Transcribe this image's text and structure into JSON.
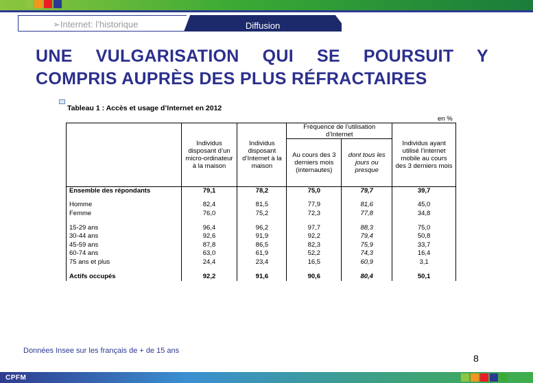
{
  "header": {
    "tab_previous": "➢Internet: l’historique",
    "tab_current": "Diffusion",
    "top_squares": [
      "#8dc63f",
      "#f7941d",
      "#ed1c24",
      "#2b3990"
    ],
    "bottom_squares": [
      "#8dc63f",
      "#f7941d",
      "#ed1c24",
      "#2b3990",
      "#39a935"
    ]
  },
  "title": {
    "line1": "UNE VULGARISATION QUI SE POURSUIT Y",
    "line2": "COMPRIS AUPRÈS DES PLUS RÉFRACTAIRES"
  },
  "table": {
    "caption": "Tableau 1 : Accès et usage d’Internet en 2012",
    "unit": "en %",
    "group_header": "Fréquence de l’utilisation d’Internet",
    "columns": [
      "Individus disposant d’un micro-ordinateur à la maison",
      "Individus disposant d’Internet à la maison",
      "Au cours des 3 derniers mois (internautes)",
      "dont tous les jours ou presque",
      "Individus ayant utilisé l’internet mobile au cours des 3 derniers mois"
    ],
    "rows": [
      {
        "label": "Ensemble des répondants",
        "values": [
          "79,1",
          "78,2",
          "75,0",
          "79,7",
          "39,7"
        ]
      },
      {
        "label": "Homme",
        "values": [
          "82,4",
          "81,5",
          "77,9",
          "81,6",
          "45,0"
        ]
      },
      {
        "label": "Femme",
        "values": [
          "76,0",
          "75,2",
          "72,3",
          "77,8",
          "34,8"
        ]
      },
      {
        "label": "15-29 ans",
        "values": [
          "96,4",
          "96,2",
          "97,7",
          "88,3",
          "75,0"
        ]
      },
      {
        "label": "30-44 ans",
        "values": [
          "92,6",
          "91,9",
          "92,2",
          "79,4",
          "50,8"
        ]
      },
      {
        "label": "45-59 ans",
        "values": [
          "87,8",
          "86,5",
          "82,3",
          "75,9",
          "33,7"
        ]
      },
      {
        "label": "60-74 ans",
        "values": [
          "63,0",
          "61,9",
          "52,2",
          "74,3",
          "16,4"
        ]
      },
      {
        "label": "75 ans et plus",
        "values": [
          "24,4",
          "23,4",
          "16,5",
          "60,9",
          "3,1"
        ]
      },
      {
        "label": "Actifs occupés",
        "values": [
          "92,2",
          "91,6",
          "90,6",
          "80,4",
          "50,1"
        ]
      }
    ]
  },
  "footnote": "Données Insee sur les français de + de 15 ans",
  "page_number": "8",
  "footer": {
    "brand": "CPFM"
  }
}
